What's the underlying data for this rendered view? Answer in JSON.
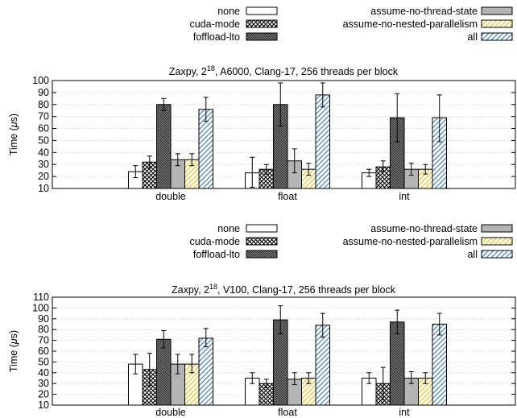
{
  "chart_data": [
    {
      "type": "bar",
      "title_prefix": "Zaxpy, 2",
      "title_sup": "18",
      "title_suffix": ", A6000, Clang-17, 256 threads per block",
      "ylabel_prefix": "Time (",
      "ylabel_mu": "μ",
      "ylabel_suffix": "s)",
      "ylim": [
        10,
        100
      ],
      "yticks": [
        10,
        20,
        30,
        40,
        50,
        60,
        70,
        80,
        90,
        100
      ],
      "grid": true,
      "legend_position": "top",
      "categories": [
        "double",
        "float",
        "int"
      ],
      "series": [
        {
          "name": "none",
          "pattern": "plain",
          "values": [
            24,
            23,
            23
          ],
          "error_low": [
            19,
            11,
            20
          ],
          "error_high": [
            29,
            36,
            26
          ]
        },
        {
          "name": "cuda-mode",
          "pattern": "crosshatch",
          "values": [
            32,
            26,
            28
          ],
          "error_low": [
            27,
            22,
            24
          ],
          "error_high": [
            37,
            30,
            33
          ]
        },
        {
          "name": "foffload-lto",
          "pattern": "dense",
          "values": [
            80,
            80,
            69
          ],
          "error_low": [
            75,
            62,
            49
          ],
          "error_high": [
            85,
            98,
            89
          ]
        },
        {
          "name": "assume-no-thread-state",
          "pattern": "gray",
          "values": [
            34,
            33,
            26
          ],
          "error_low": [
            29,
            23,
            21
          ],
          "error_high": [
            39,
            43,
            31
          ]
        },
        {
          "name": "assume-no-nested-parallelism",
          "pattern": "yellow-hatch",
          "values": [
            34,
            26,
            26
          ],
          "error_low": [
            29,
            21,
            22
          ],
          "error_high": [
            39,
            31,
            30
          ]
        },
        {
          "name": "all",
          "pattern": "blue-hatch",
          "values": [
            76,
            88,
            69
          ],
          "error_low": [
            66,
            78,
            49
          ],
          "error_high": [
            86,
            98,
            88
          ]
        }
      ]
    },
    {
      "type": "bar",
      "title_prefix": "Zaxpy, 2",
      "title_sup": "18",
      "title_suffix": ", V100, Clang-17, 256 threads per block",
      "ylabel_prefix": "Time (",
      "ylabel_mu": "μ",
      "ylabel_suffix": "s)",
      "ylim": [
        10,
        110
      ],
      "yticks": [
        10,
        20,
        30,
        40,
        50,
        60,
        70,
        80,
        90,
        100,
        110
      ],
      "grid": true,
      "legend_position": "top",
      "categories": [
        "double",
        "float",
        "int"
      ],
      "series": [
        {
          "name": "none",
          "pattern": "plain",
          "values": [
            48,
            35,
            35
          ],
          "error_low": [
            39,
            30,
            30
          ],
          "error_high": [
            57,
            40,
            40
          ]
        },
        {
          "name": "cuda-mode",
          "pattern": "crosshatch",
          "values": [
            43,
            30,
            30
          ],
          "error_low": [
            28,
            26,
            15
          ],
          "error_high": [
            58,
            34,
            45
          ]
        },
        {
          "name": "foffload-lto",
          "pattern": "dense",
          "values": [
            71,
            89,
            87
          ],
          "error_low": [
            63,
            76,
            76
          ],
          "error_high": [
            79,
            102,
            98
          ]
        },
        {
          "name": "assume-no-thread-state",
          "pattern": "gray",
          "values": [
            48,
            34,
            35
          ],
          "error_low": [
            39,
            29,
            30
          ],
          "error_high": [
            57,
            40,
            41
          ]
        },
        {
          "name": "assume-no-nested-parallelism",
          "pattern": "yellow-hatch",
          "values": [
            48,
            35,
            35
          ],
          "error_low": [
            40,
            30,
            30
          ],
          "error_high": [
            57,
            40,
            40
          ]
        },
        {
          "name": "all",
          "pattern": "blue-hatch",
          "values": [
            72,
            84,
            85
          ],
          "error_low": [
            64,
            73,
            75
          ],
          "error_high": [
            81,
            95,
            95
          ]
        }
      ]
    }
  ]
}
